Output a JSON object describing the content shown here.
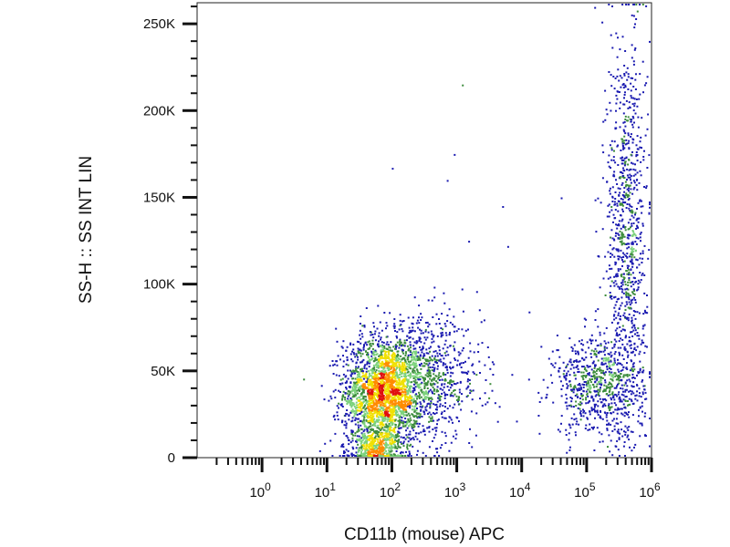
{
  "chart_data": {
    "type": "scatter",
    "subtype": "density-dot-plot",
    "title": "",
    "xlabel": "CD11b (mouse) APC",
    "ylabel": "SS-H :: SS INT LIN",
    "x_scale": "log",
    "xlim": [
      0.1,
      1000000
    ],
    "ylim": [
      0,
      262144
    ],
    "x_major_ticks": [
      {
        "value": 1,
        "base": "10",
        "exp": "0"
      },
      {
        "value": 10,
        "base": "10",
        "exp": "1"
      },
      {
        "value": 100,
        "base": "10",
        "exp": "2"
      },
      {
        "value": 1000,
        "base": "10",
        "exp": "3"
      },
      {
        "value": 10000,
        "base": "10",
        "exp": "4"
      },
      {
        "value": 100000,
        "base": "10",
        "exp": "5"
      },
      {
        "value": 1000000,
        "base": "10",
        "exp": "6"
      }
    ],
    "y_ticks": [
      {
        "value": 0,
        "label": "0"
      },
      {
        "value": 50000,
        "label": "50K"
      },
      {
        "value": 100000,
        "label": "100K"
      },
      {
        "value": 150000,
        "label": "150K"
      },
      {
        "value": 200000,
        "label": "200K"
      },
      {
        "value": 250000,
        "label": "250K"
      }
    ],
    "grid": false,
    "legend": "none",
    "density_colors": [
      "#1a1ab0",
      "#3c8c3c",
      "#7cd27c",
      "#f0e000",
      "#ff8c00",
      "#e01010"
    ],
    "populations": [
      {
        "x_center": 70,
        "y_center": 38000,
        "x_spread_decades": 0.3,
        "y_spread": 16000,
        "weight": 0.42
      },
      {
        "x_center": 300,
        "y_center": 45000,
        "x_spread_decades": 0.45,
        "y_spread": 18000,
        "weight": 0.18
      },
      {
        "x_center": 55,
        "y_center": 6000,
        "x_spread_decades": 0.2,
        "y_spread": 6000,
        "weight": 0.08
      },
      {
        "x_center": 150000,
        "y_center": 42000,
        "x_spread_decades": 0.35,
        "y_spread": 14000,
        "weight": 0.14
      },
      {
        "x_center": 400000,
        "y_center": 130000,
        "x_spread_decades": 0.15,
        "y_spread": 60000,
        "weight": 0.18
      }
    ],
    "outlier_points": [
      {
        "x": 6000,
        "y": 122000
      },
      {
        "x": 5000,
        "y": 145000
      },
      {
        "x": 1200,
        "y": 215000
      },
      {
        "x": 900,
        "y": 175000
      },
      {
        "x": 100,
        "y": 167000
      },
      {
        "x": 1500,
        "y": 125000
      },
      {
        "x": 700,
        "y": 160000
      },
      {
        "x": 40000,
        "y": 150000
      }
    ]
  }
}
